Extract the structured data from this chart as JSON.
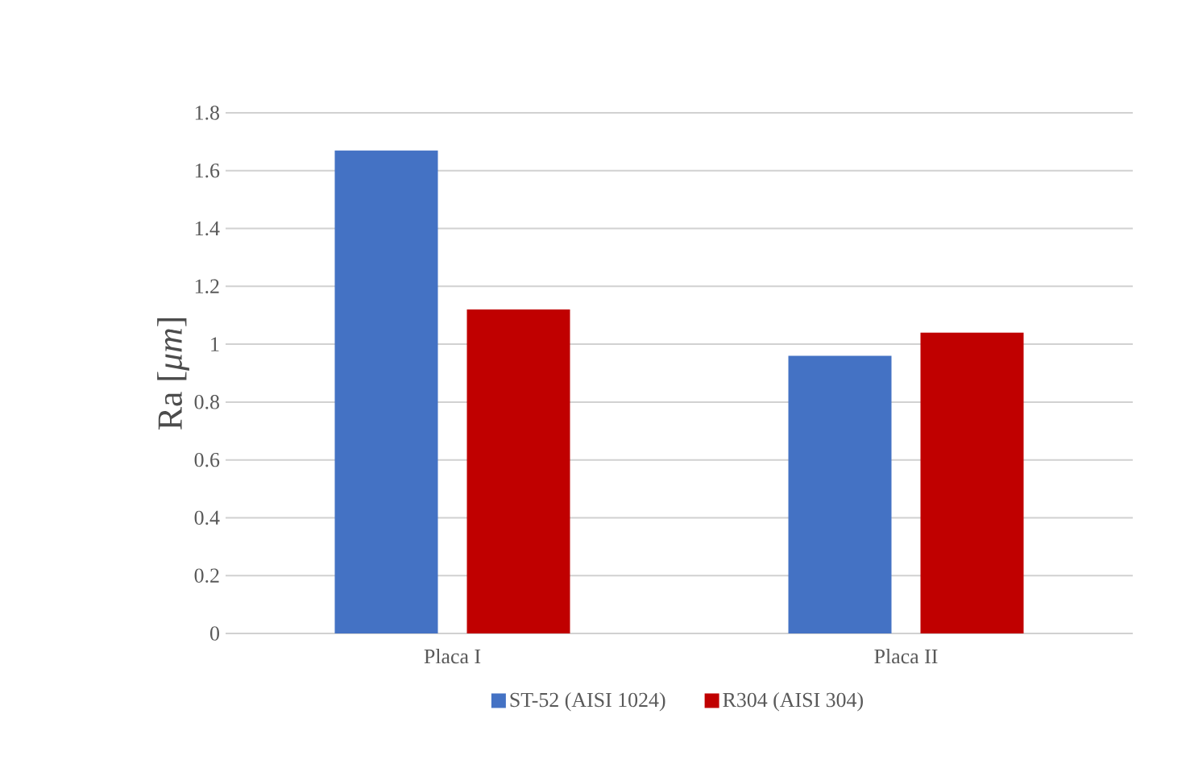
{
  "chart_data": {
    "type": "bar",
    "ylabel": "Ra [*μm*]",
    "categories": [
      "Placa I",
      "Placa II"
    ],
    "series": [
      {
        "name": "ST-52 (AISI 1024)",
        "color": "#4472c4",
        "values": [
          1.67,
          0.96
        ]
      },
      {
        "name": "R304 (AISI 304)",
        "color": "#c00000",
        "values": [
          1.12,
          1.04
        ]
      }
    ],
    "ylim": [
      0,
      1.8
    ],
    "yticks": [
      0,
      0.2,
      0.4,
      0.6,
      0.8,
      1,
      1.2,
      1.4,
      1.6,
      1.8
    ],
    "grid": "y",
    "legend": "bottom"
  }
}
